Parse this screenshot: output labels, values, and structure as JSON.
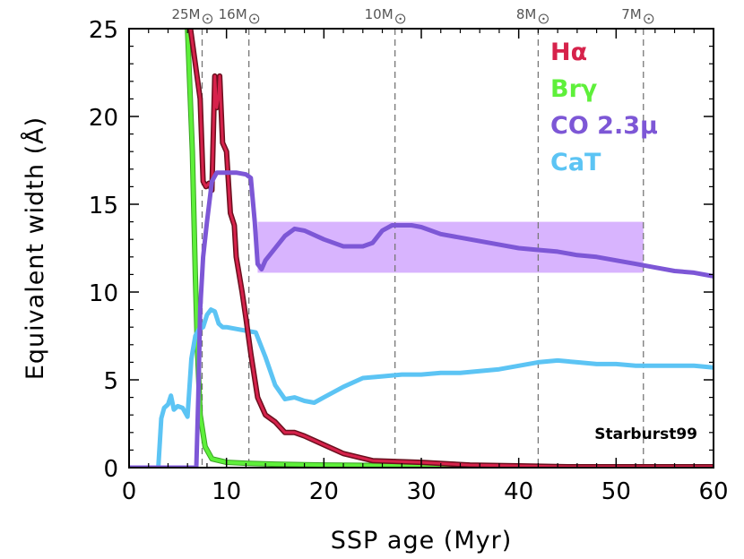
{
  "chart_data": {
    "type": "line",
    "xlabel": "SSP age (Myr)",
    "ylabel": "Equivalent width (Å)",
    "xlim": [
      0,
      60
    ],
    "ylim": [
      0,
      25
    ],
    "x_ticks": [
      0,
      10,
      20,
      30,
      40,
      50,
      60
    ],
    "y_ticks": [
      0,
      5,
      10,
      15,
      20,
      25
    ],
    "annotation": "Starburst99",
    "mass_markers": [
      {
        "label": "25M",
        "age": 7.5
      },
      {
        "label": "16M",
        "age": 12.3
      },
      {
        "label": "10M",
        "age": 27.3
      },
      {
        "label": "8M",
        "age": 42.0
      },
      {
        "label": "7M",
        "age": 52.8
      }
    ],
    "shaded_band": {
      "x": [
        13.2,
        52.8
      ],
      "y": [
        11.1,
        14.0
      ],
      "color": "#d8b4fe"
    },
    "series": [
      {
        "name": "Hα",
        "color": "#d6224b",
        "edge_color": "#6b0f1e",
        "x": [
          6.3,
          7.3,
          7.6,
          7.9,
          8.2,
          8.5,
          8.8,
          9.0,
          9.2,
          9.3,
          9.6,
          10.0,
          10.4,
          10.8,
          11.0,
          11.6,
          12.0,
          12.5,
          13.2,
          14.0,
          15.0,
          16.0,
          17.0,
          18.0,
          20.0,
          22.0,
          25.0,
          30.0,
          35.0,
          40.0,
          45.0,
          50.0,
          55.0,
          60.0
        ],
        "y": [
          25.0,
          21.0,
          16.3,
          16.0,
          16.2,
          15.8,
          22.3,
          20.5,
          21.2,
          22.3,
          18.5,
          18.0,
          14.5,
          13.8,
          12.0,
          10.0,
          8.5,
          6.5,
          4.0,
          3.0,
          2.6,
          2.0,
          2.0,
          1.8,
          1.3,
          0.8,
          0.4,
          0.3,
          0.15,
          0.1,
          0.05,
          0.05,
          0.05,
          0.05
        ]
      },
      {
        "name": "Brγ",
        "color": "#5ef03a",
        "x": [
          6.0,
          6.5,
          6.8,
          7.0,
          7.3,
          7.8,
          8.5,
          10.0,
          12.0,
          15.0,
          20.0,
          30.0,
          40.0,
          50.0,
          60.0
        ],
        "y": [
          25.0,
          18.0,
          11.0,
          7.0,
          3.0,
          1.2,
          0.5,
          0.3,
          0.25,
          0.2,
          0.15,
          0.1,
          0.05,
          0.05,
          0.05
        ]
      },
      {
        "name": "CO 2.3μ",
        "color": "#7d57d6",
        "x": [
          0.0,
          6.9,
          7.1,
          7.3,
          7.6,
          8.0,
          8.5,
          9.0,
          10.0,
          11.0,
          12.0,
          12.5,
          12.9,
          13.2,
          13.6,
          14.0,
          15.0,
          16.0,
          17.0,
          18.0,
          20.0,
          22.0,
          24.0,
          25.0,
          26.0,
          27.0,
          28.0,
          29.0,
          30.0,
          32.0,
          35.0,
          38.0,
          40.0,
          42.0,
          44.0,
          46.0,
          48.0,
          50.0,
          52.0,
          54.0,
          56.0,
          58.0,
          60.0
        ],
        "y": [
          0.0,
          0.0,
          4.0,
          9.0,
          12.0,
          14.0,
          16.3,
          16.8,
          16.8,
          16.8,
          16.7,
          16.5,
          14.0,
          11.6,
          11.3,
          11.8,
          12.5,
          13.2,
          13.6,
          13.5,
          13.0,
          12.6,
          12.6,
          12.8,
          13.5,
          13.8,
          13.8,
          13.8,
          13.7,
          13.3,
          13.0,
          12.7,
          12.5,
          12.4,
          12.3,
          12.1,
          12.0,
          11.8,
          11.6,
          11.4,
          11.2,
          11.1,
          10.9
        ]
      },
      {
        "name": "CaT",
        "color": "#5cc4f4",
        "x": [
          0.0,
          3.0,
          3.3,
          3.6,
          4.0,
          4.3,
          4.6,
          5.0,
          5.5,
          6.0,
          6.4,
          6.8,
          7.2,
          7.6,
          8.0,
          8.4,
          8.8,
          9.2,
          9.6,
          10.0,
          11.0,
          12.0,
          13.0,
          14.0,
          15.0,
          16.0,
          17.0,
          18.0,
          19.0,
          20.0,
          22.0,
          24.0,
          26.0,
          28.0,
          30.0,
          32.0,
          34.0,
          36.0,
          38.0,
          40.0,
          42.0,
          44.0,
          46.0,
          48.0,
          50.0,
          52.0,
          54.0,
          56.0,
          58.0,
          60.0
        ],
        "y": [
          0.0,
          0.0,
          2.8,
          3.4,
          3.6,
          4.1,
          3.3,
          3.5,
          3.4,
          2.9,
          6.2,
          7.5,
          7.9,
          8.0,
          8.7,
          9.0,
          8.9,
          8.2,
          8.0,
          8.0,
          7.9,
          7.8,
          7.7,
          6.3,
          4.7,
          3.9,
          4.0,
          3.8,
          3.7,
          4.0,
          4.6,
          5.1,
          5.2,
          5.3,
          5.3,
          5.4,
          5.4,
          5.5,
          5.6,
          5.8,
          6.0,
          6.1,
          6.0,
          5.9,
          5.9,
          5.8,
          5.8,
          5.8,
          5.8,
          5.7
        ]
      }
    ]
  }
}
